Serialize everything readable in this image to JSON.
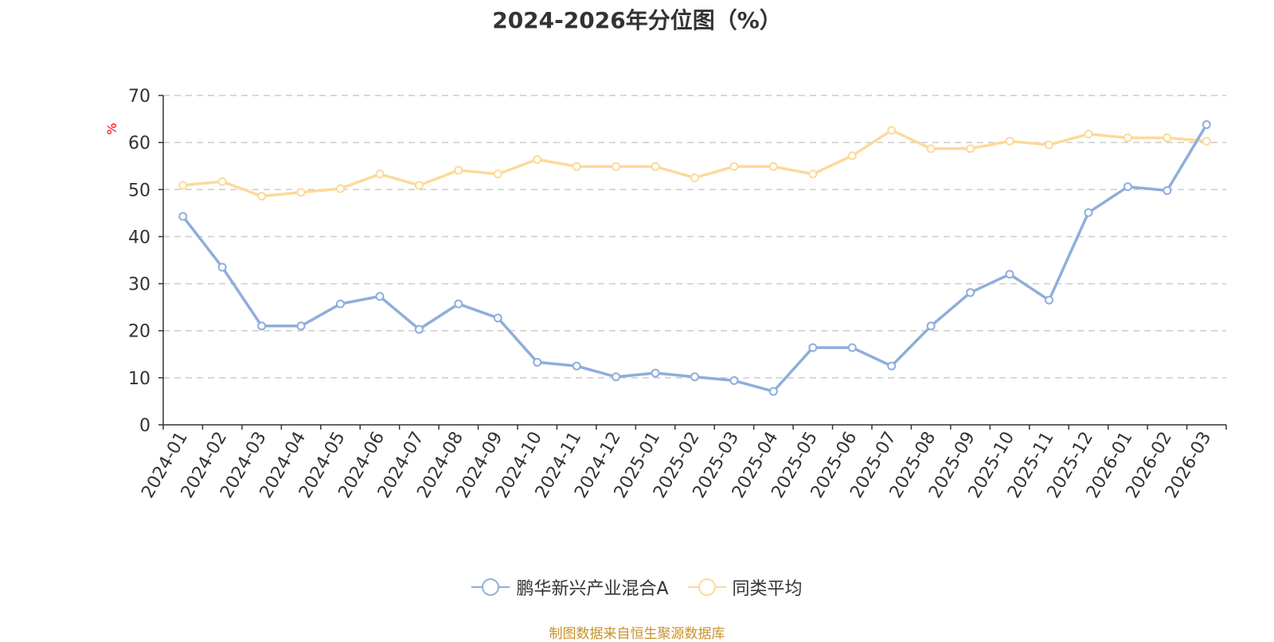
{
  "chart_data": {
    "type": "line",
    "title": "2024-2026年分位图（%）",
    "ylabel": "%",
    "ylim": [
      0,
      70
    ],
    "yticks": [
      0,
      10,
      20,
      30,
      40,
      50,
      60,
      70
    ],
    "grid": true,
    "legend_position": "bottom-center",
    "categories": [
      "2024-01",
      "2024-02",
      "2024-03",
      "2024-04",
      "2024-05",
      "2024-06",
      "2024-07",
      "2024-08",
      "2024-09",
      "2024-10",
      "2024-11",
      "2024-12",
      "2025-01",
      "2025-02",
      "2025-03",
      "2025-04",
      "2025-05",
      "2025-06",
      "2025-07",
      "2025-08",
      "2025-09",
      "2025-10",
      "2025-11",
      "2025-12",
      "2026-01",
      "2026-02",
      "2026-03"
    ],
    "series": [
      {
        "name": "鹏华新兴产业混合A",
        "color": "#8eaedb",
        "values": [
          44.3,
          33.5,
          21.0,
          21.0,
          25.7,
          27.3,
          20.3,
          25.7,
          22.7,
          13.3,
          12.5,
          10.2,
          11.0,
          10.2,
          9.4,
          7.1,
          16.4,
          16.4,
          12.5,
          21.0,
          28.1,
          32.0,
          26.5,
          45.1,
          50.6,
          49.8,
          63.8
        ]
      },
      {
        "name": "同类平均",
        "color": "#fdd99a",
        "values": [
          50.9,
          51.7,
          48.6,
          49.4,
          50.2,
          53.3,
          50.9,
          54.1,
          53.3,
          56.4,
          54.9,
          54.9,
          54.9,
          52.5,
          54.9,
          54.9,
          53.3,
          57.2,
          62.6,
          58.7,
          58.7,
          60.3,
          59.5,
          61.8,
          61.0,
          61.0,
          60.3
        ]
      }
    ]
  },
  "footer": {
    "source": "制图数据来自恒生聚源数据库"
  }
}
